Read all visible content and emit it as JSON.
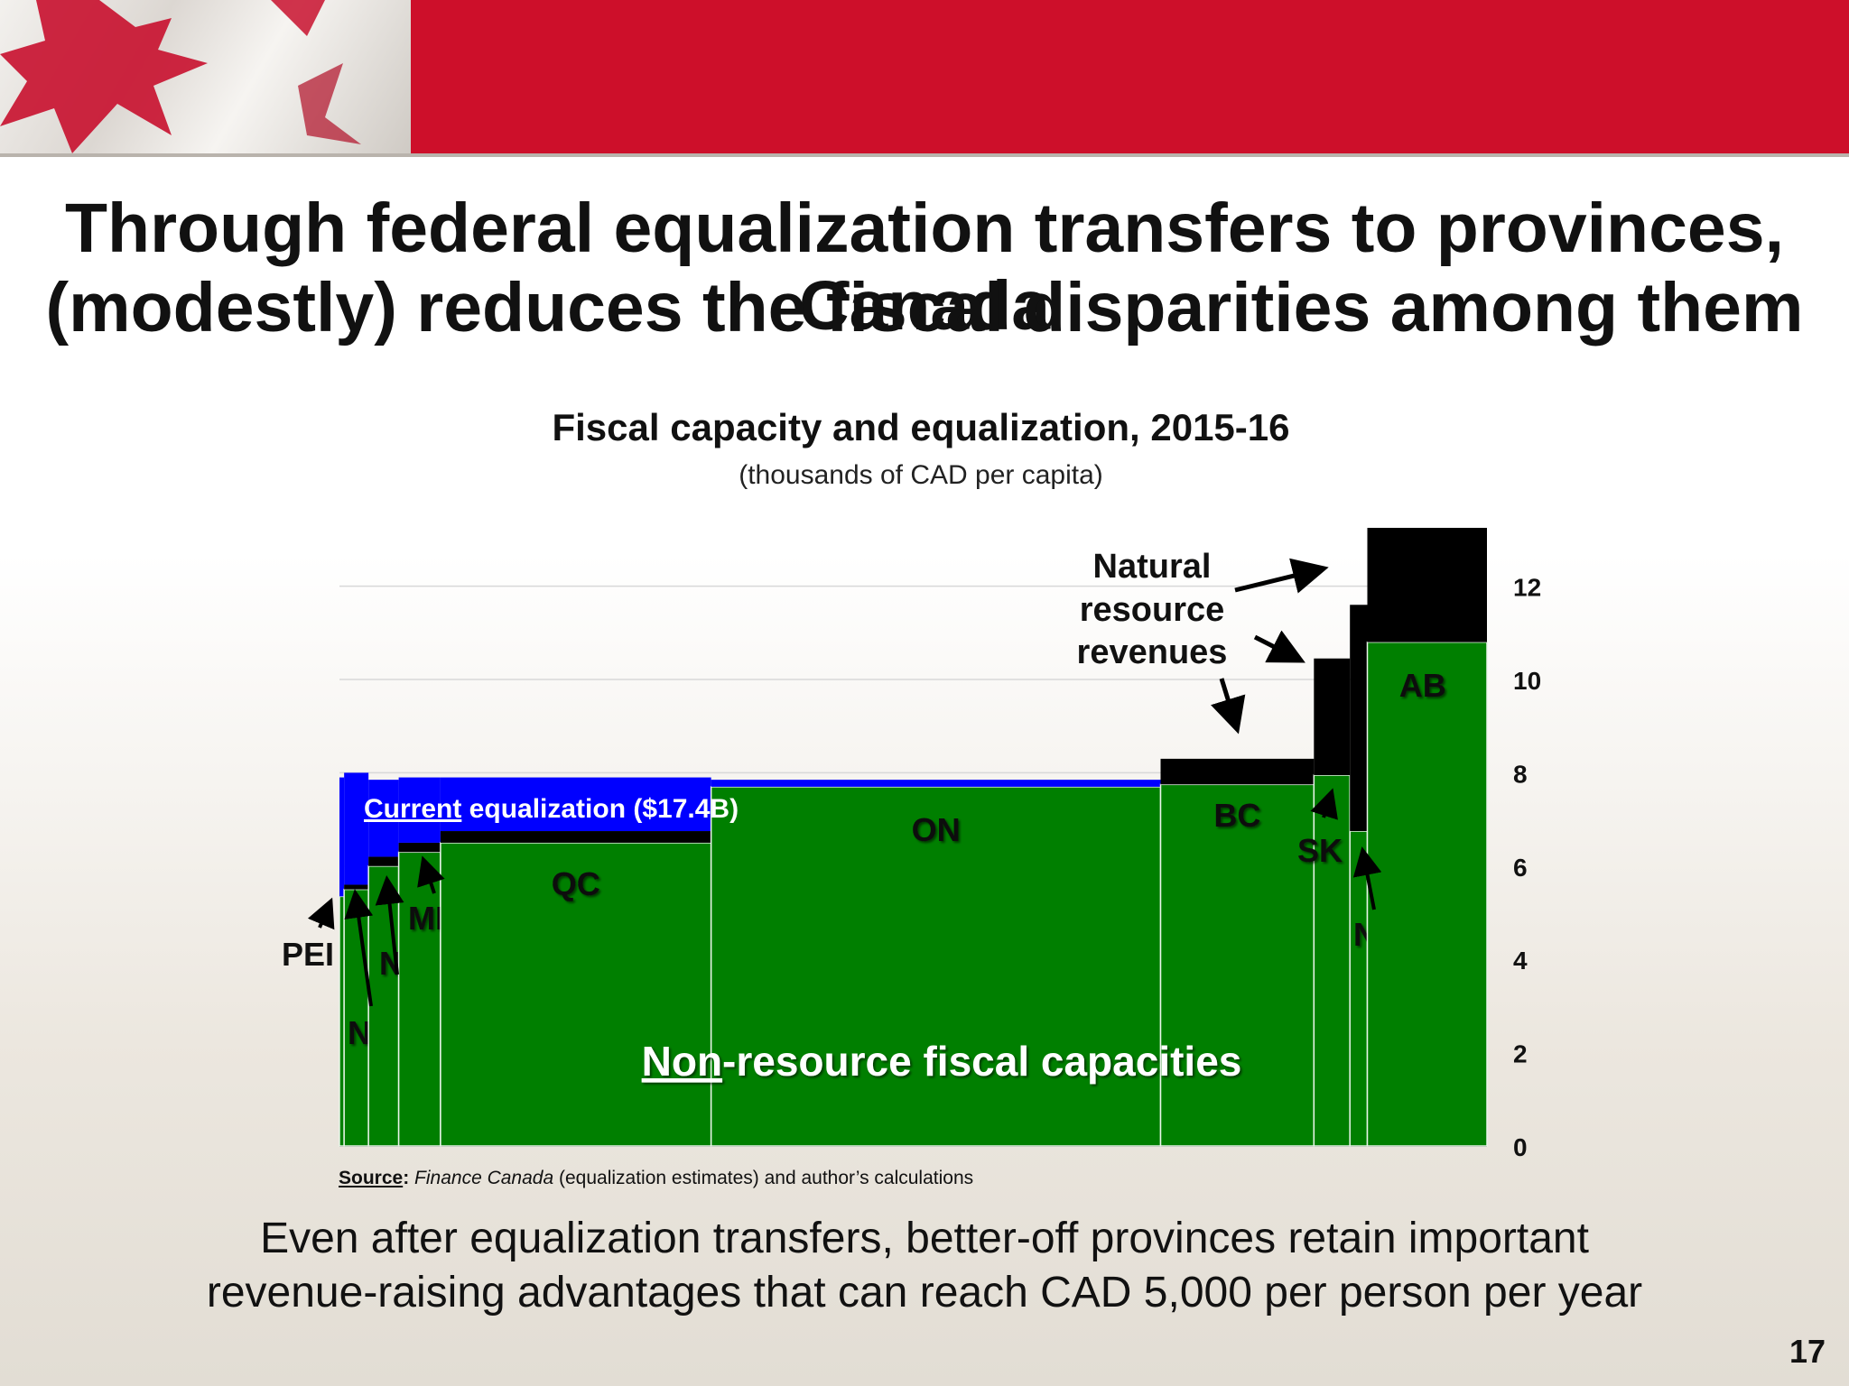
{
  "slide": {
    "title_lines": [
      "Through federal equalization transfers to provinces, Canada",
      "(modestly) reduces the fiscal disparities among them"
    ],
    "note_lines": [
      "Even after equalization transfers, better-off provinces retain important",
      "revenue-raising advantages that can reach CAD 5,000 per person per year"
    ],
    "source_label": "Source",
    "source_colon": ":",
    "source_italic": "Finance Canada",
    "source_rest": " (equalization estimates) and author’s calculations",
    "page_number": "17"
  },
  "colors": {
    "banner": "#cd0f2a",
    "non_resource": "#007f00",
    "resource": "#000000",
    "equalization": "#0000ff"
  },
  "chart_data": {
    "type": "bar",
    "variable_width": true,
    "title": "Fiscal capacity and equalization, 2015-16",
    "subtitle": "(thousands of CAD per capita)",
    "ylim": [
      0,
      13.2
    ],
    "yticks": [
      0,
      2,
      4,
      6,
      8,
      10,
      12
    ],
    "y_axis_side": "right",
    "grid": true,
    "categories": [
      "PEI",
      "NB",
      "NS",
      "MB",
      "QC",
      "ON",
      "BC",
      "SK",
      "NL",
      "AB"
    ],
    "population_share": [
      0.4,
      2.1,
      2.6,
      3.6,
      23.3,
      38.7,
      13.2,
      3.1,
      1.5,
      10.3
    ],
    "series": [
      {
        "name": "Non-resource fiscal capacities",
        "values": [
          5.35,
          5.5,
          6.0,
          6.3,
          6.5,
          7.7,
          7.75,
          7.95,
          6.75,
          10.8
        ]
      },
      {
        "name": "Natural resource revenues",
        "values": [
          0,
          0.1,
          0.2,
          0.2,
          0.25,
          0,
          0.55,
          2.5,
          4.85,
          2.45
        ]
      },
      {
        "name": "Current equalization ($17.4B)",
        "values": [
          2.55,
          2.4,
          1.65,
          1.4,
          1.15,
          0.15,
          0,
          0,
          0,
          0
        ]
      }
    ],
    "annotations": {
      "natural_resource": [
        "Natural",
        "resource",
        "revenues"
      ],
      "equalization": [
        "Current",
        " equalization ($17.4B)"
      ],
      "non_resource": [
        "Non",
        "-resource fiscal capacities"
      ]
    }
  }
}
